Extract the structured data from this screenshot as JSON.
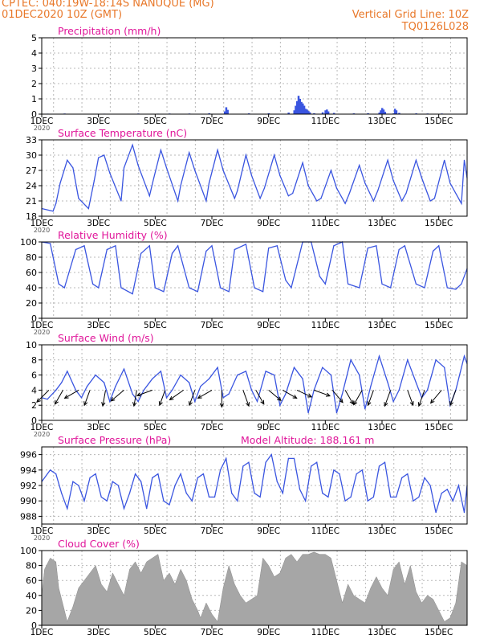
{
  "header": {
    "station": "CPTEC:   040:19W-18:14S   NANUQUE (MG)",
    "date": "01DEC2020 10Z (GMT)",
    "grid_line": "Vertical Grid Line: 10Z",
    "code": "TQ0126L028"
  },
  "x_axis": {
    "ticks": [
      "1DEC",
      "3DEC",
      "5DEC",
      "7DEC",
      "9DEC",
      "11DEC",
      "13DEC",
      "15DEC"
    ],
    "tick_days": [
      1,
      3,
      5,
      7,
      9,
      11,
      13,
      15
    ],
    "year_label": "2020",
    "range": [
      1,
      16
    ]
  },
  "colors": {
    "line": "#3a55e0",
    "title": "#e0169a",
    "header": "#e8782a",
    "grid": "#b8b8b8",
    "cloud": "#a6a6a6",
    "vector": "#000000"
  },
  "chart_data": [
    {
      "id": "precip",
      "type": "bar",
      "title": "Precipitation (mm/h)",
      "ylim": [
        0,
        5
      ],
      "yticks": [
        0,
        1,
        2,
        3,
        4,
        5
      ],
      "series": [
        {
          "x": [
            1.2,
            1.8,
            3.2,
            4.4,
            5.1,
            5.5,
            6.2,
            6.9,
            7.45,
            7.5,
            7.55,
            8.3,
            9.0,
            9.7,
            9.9,
            9.95,
            10.0,
            10.05,
            10.1,
            10.15,
            10.2,
            10.25,
            10.3,
            10.35,
            10.4,
            10.45,
            10.6,
            10.9,
            11.0,
            11.05,
            11.1,
            11.3,
            12.0,
            12.5,
            12.9,
            12.95,
            13.0,
            13.05,
            13.1,
            13.4,
            13.45,
            13.5,
            13.6,
            14.2,
            14.6,
            15.1
          ],
          "values": [
            0.03,
            0.04,
            0.03,
            0.04,
            0.03,
            0.04,
            0.04,
            0.06,
            0.18,
            0.45,
            0.28,
            0.05,
            0.06,
            0.1,
            0.25,
            0.55,
            0.85,
            1.2,
            1.0,
            0.8,
            0.7,
            0.55,
            0.35,
            0.3,
            0.2,
            0.12,
            0.06,
            0.12,
            0.25,
            0.3,
            0.18,
            0.08,
            0.05,
            0.06,
            0.1,
            0.25,
            0.4,
            0.3,
            0.15,
            0.05,
            0.35,
            0.25,
            0.08,
            0.05,
            0.04,
            0.04
          ]
        }
      ]
    },
    {
      "id": "temp",
      "type": "line",
      "title": "Surface Temperature (nC)",
      "ylim": [
        18,
        33
      ],
      "yticks": [
        18,
        21,
        24,
        27,
        30,
        33
      ],
      "series": [
        {
          "x": [
            1.0,
            1.4,
            1.5,
            1.65,
            1.9,
            2.1,
            2.3,
            2.65,
            2.85,
            3.0,
            3.2,
            3.4,
            3.8,
            3.9,
            4.2,
            4.4,
            4.8,
            4.95,
            5.2,
            5.4,
            5.8,
            5.9,
            6.2,
            6.4,
            6.8,
            6.9,
            7.2,
            7.4,
            7.8,
            7.9,
            8.2,
            8.4,
            8.7,
            8.85,
            9.2,
            9.4,
            9.7,
            9.85,
            10.2,
            10.4,
            10.7,
            10.85,
            11.2,
            11.4,
            11.7,
            11.85,
            12.2,
            12.4,
            12.7,
            12.85,
            13.2,
            13.4,
            13.7,
            13.85,
            14.2,
            14.4,
            14.7,
            14.85,
            15.2,
            15.4,
            15.8,
            15.9,
            16.0
          ],
          "values": [
            19.5,
            19.0,
            20.5,
            24.5,
            29.0,
            27.5,
            21.5,
            19.5,
            25.0,
            29.5,
            30.0,
            26.5,
            21.0,
            27.5,
            32.0,
            28.0,
            22.0,
            25.5,
            31.0,
            27.5,
            21.0,
            24.0,
            30.5,
            27.0,
            21.0,
            24.5,
            31.0,
            27.0,
            21.5,
            23.0,
            30.0,
            26.0,
            21.5,
            23.5,
            30.0,
            26.0,
            22.0,
            22.5,
            28.5,
            24.0,
            21.0,
            21.5,
            27.0,
            23.5,
            20.5,
            22.5,
            28.0,
            24.5,
            21.0,
            23.0,
            29.0,
            25.0,
            21.0,
            22.5,
            29.0,
            25.5,
            21.0,
            21.5,
            29.0,
            24.5,
            20.5,
            29.0,
            25.5
          ]
        }
      ]
    },
    {
      "id": "rh",
      "type": "line",
      "title": "Relative Humidity (%)",
      "ylim": [
        0,
        100
      ],
      "yticks": [
        0,
        20,
        40,
        60,
        80,
        100
      ],
      "series": [
        {
          "x": [
            1.0,
            1.3,
            1.6,
            1.8,
            2.2,
            2.5,
            2.8,
            3.0,
            3.3,
            3.6,
            3.8,
            4.2,
            4.5,
            4.8,
            5.0,
            5.3,
            5.6,
            5.8,
            6.2,
            6.5,
            6.8,
            7.0,
            7.3,
            7.6,
            7.8,
            8.2,
            8.5,
            8.8,
            9.0,
            9.3,
            9.6,
            9.8,
            10.2,
            10.5,
            10.8,
            11.0,
            11.3,
            11.6,
            11.8,
            12.2,
            12.5,
            12.8,
            13.0,
            13.3,
            13.6,
            13.8,
            14.2,
            14.5,
            14.8,
            15.0,
            15.3,
            15.6,
            15.8,
            16.0
          ],
          "values": [
            100,
            98,
            45,
            40,
            90,
            95,
            45,
            40,
            90,
            95,
            40,
            32,
            85,
            95,
            40,
            35,
            85,
            95,
            40,
            35,
            88,
            95,
            40,
            35,
            90,
            97,
            40,
            35,
            92,
            95,
            50,
            40,
            100,
            100,
            55,
            45,
            95,
            100,
            45,
            40,
            92,
            95,
            45,
            40,
            90,
            95,
            45,
            40,
            88,
            95,
            40,
            38,
            45,
            65
          ]
        }
      ]
    },
    {
      "id": "wind",
      "type": "line",
      "title": "Surface Wind (m/s)",
      "ylim": [
        0,
        10
      ],
      "yticks": [
        0,
        2,
        4,
        6,
        8,
        10
      ],
      "series": [
        {
          "x": [
            1.0,
            1.2,
            1.5,
            1.7,
            1.9,
            2.2,
            2.4,
            2.6,
            2.9,
            3.2,
            3.4,
            3.6,
            3.9,
            4.2,
            4.4,
            4.6,
            4.9,
            5.2,
            5.4,
            5.6,
            5.9,
            6.2,
            6.4,
            6.6,
            6.9,
            7.2,
            7.4,
            7.6,
            7.9,
            8.2,
            8.4,
            8.6,
            8.9,
            9.2,
            9.4,
            9.6,
            9.9,
            10.2,
            10.4,
            10.6,
            10.9,
            11.2,
            11.4,
            11.6,
            11.9,
            12.2,
            12.4,
            12.6,
            12.9,
            13.2,
            13.4,
            13.6,
            13.9,
            14.2,
            14.4,
            14.6,
            14.9,
            15.2,
            15.4,
            15.6,
            15.9,
            16.0
          ],
          "values": [
            3.0,
            2.8,
            4.0,
            5.0,
            6.5,
            4.0,
            3.0,
            4.5,
            6.0,
            5.0,
            2.5,
            4.5,
            6.8,
            3.5,
            2.5,
            4.0,
            5.5,
            6.5,
            3.0,
            4.0,
            6.0,
            5.0,
            2.5,
            4.5,
            5.5,
            7.0,
            3.0,
            3.5,
            6.0,
            6.5,
            4.0,
            2.5,
            6.5,
            6.0,
            2.0,
            3.5,
            7.0,
            5.5,
            1.0,
            4.0,
            7.0,
            6.0,
            1.0,
            3.5,
            8.0,
            6.0,
            1.5,
            4.5,
            8.5,
            5.0,
            2.5,
            4.0,
            8.0,
            5.0,
            3.0,
            4.0,
            8.0,
            7.0,
            2.0,
            4.0,
            8.5,
            7.5
          ]
        }
      ],
      "vectors": [
        {
          "x": 1.25,
          "speed": 3.5,
          "dir_deg": 225
        },
        {
          "x": 1.75,
          "speed": 3.0,
          "dir_deg": 210
        },
        {
          "x": 2.3,
          "speed": 3.0,
          "dir_deg": 240
        },
        {
          "x": 2.7,
          "speed": 3.0,
          "dir_deg": 200
        },
        {
          "x": 3.25,
          "speed": 3.0,
          "dir_deg": 190
        },
        {
          "x": 3.9,
          "speed": 3.5,
          "dir_deg": 230
        },
        {
          "x": 4.35,
          "speed": 3.0,
          "dir_deg": 190
        },
        {
          "x": 4.9,
          "speed": 3.0,
          "dir_deg": 250
        },
        {
          "x": 5.35,
          "speed": 3.0,
          "dir_deg": 200
        },
        {
          "x": 6.0,
          "speed": 3.5,
          "dir_deg": 235
        },
        {
          "x": 6.4,
          "speed": 3.0,
          "dir_deg": 200
        },
        {
          "x": 7.0,
          "speed": 3.0,
          "dir_deg": 240
        },
        {
          "x": 7.35,
          "speed": 3.5,
          "dir_deg": 180
        },
        {
          "x": 8.1,
          "speed": 3.5,
          "dir_deg": 160
        },
        {
          "x": 8.55,
          "speed": 3.0,
          "dir_deg": 150
        },
        {
          "x": 9.0,
          "speed": 3.0,
          "dir_deg": 130
        },
        {
          "x": 9.5,
          "speed": 3.0,
          "dir_deg": 120
        },
        {
          "x": 10.0,
          "speed": 3.0,
          "dir_deg": 115
        },
        {
          "x": 10.6,
          "speed": 3.5,
          "dir_deg": 110
        },
        {
          "x": 11.25,
          "speed": 3.0,
          "dir_deg": 140
        },
        {
          "x": 11.7,
          "speed": 3.0,
          "dir_deg": 150
        },
        {
          "x": 12.3,
          "speed": 3.5,
          "dir_deg": 210
        },
        {
          "x": 12.7,
          "speed": 3.0,
          "dir_deg": 200
        },
        {
          "x": 13.3,
          "speed": 3.5,
          "dir_deg": 200
        },
        {
          "x": 13.9,
          "speed": 3.0,
          "dir_deg": 160
        },
        {
          "x": 14.5,
          "speed": 3.5,
          "dir_deg": 200
        },
        {
          "x": 15.1,
          "speed": 3.5,
          "dir_deg": 220
        },
        {
          "x": 15.6,
          "speed": 3.0,
          "dir_deg": 200
        }
      ]
    },
    {
      "id": "pres",
      "type": "line",
      "title": "Surface Pressure (hPa)",
      "annotation": "Model Altitude: 188.161  m",
      "ylim": [
        987,
        997
      ],
      "yticks": [
        988,
        990,
        992,
        994,
        996
      ],
      "series": [
        {
          "x": [
            1.0,
            1.3,
            1.5,
            1.7,
            1.9,
            2.1,
            2.3,
            2.5,
            2.7,
            2.9,
            3.1,
            3.3,
            3.5,
            3.7,
            3.9,
            4.1,
            4.3,
            4.5,
            4.7,
            4.9,
            5.1,
            5.3,
            5.5,
            5.7,
            5.9,
            6.1,
            6.3,
            6.5,
            6.7,
            6.9,
            7.1,
            7.3,
            7.5,
            7.7,
            7.9,
            8.1,
            8.3,
            8.5,
            8.7,
            8.9,
            9.1,
            9.3,
            9.5,
            9.7,
            9.9,
            10.1,
            10.3,
            10.5,
            10.7,
            10.9,
            11.1,
            11.3,
            11.5,
            11.7,
            11.9,
            12.1,
            12.3,
            12.5,
            12.7,
            12.9,
            13.1,
            13.3,
            13.5,
            13.7,
            13.9,
            14.1,
            14.3,
            14.5,
            14.7,
            14.9,
            15.1,
            15.3,
            15.5,
            15.7,
            15.9,
            16.0
          ],
          "values": [
            992.5,
            994.0,
            993.5,
            991.0,
            989.0,
            992.5,
            992.0,
            990.0,
            993.0,
            993.5,
            990.5,
            990.0,
            992.5,
            992.0,
            989.0,
            991.0,
            993.5,
            992.5,
            989.0,
            993.0,
            993.5,
            990.0,
            989.5,
            992.0,
            993.5,
            991.0,
            990.0,
            993.0,
            993.5,
            990.5,
            990.5,
            994.0,
            995.5,
            991.0,
            990.0,
            994.5,
            995.0,
            991.0,
            990.5,
            995.0,
            996.0,
            992.5,
            991.0,
            995.5,
            995.5,
            991.5,
            990.0,
            994.5,
            995.0,
            991.0,
            990.5,
            994.0,
            993.5,
            990.0,
            990.5,
            993.5,
            994.0,
            990.0,
            990.5,
            994.5,
            995.0,
            990.5,
            990.5,
            993.0,
            993.5,
            990.0,
            990.5,
            993.0,
            992.0,
            988.5,
            991.0,
            991.5,
            990.0,
            992.0,
            988.5,
            992.0
          ]
        }
      ]
    },
    {
      "id": "cloud",
      "type": "area",
      "title": "Cloud Cover (%)",
      "ylim": [
        0,
        100
      ],
      "yticks": [
        0,
        20,
        40,
        60,
        80,
        100
      ],
      "series": [
        {
          "x": [
            1.0,
            1.1,
            1.3,
            1.5,
            1.6,
            1.8,
            1.9,
            2.1,
            2.3,
            2.5,
            2.7,
            2.9,
            3.1,
            3.3,
            3.5,
            3.7,
            3.9,
            4.1,
            4.3,
            4.5,
            4.7,
            4.9,
            5.1,
            5.3,
            5.5,
            5.7,
            5.9,
            6.1,
            6.3,
            6.5,
            6.6,
            6.8,
            7.0,
            7.2,
            7.4,
            7.6,
            7.8,
            8.0,
            8.2,
            8.4,
            8.6,
            8.8,
            9.0,
            9.2,
            9.4,
            9.6,
            9.8,
            10.0,
            10.2,
            10.4,
            10.6,
            10.8,
            11.0,
            11.2,
            11.4,
            11.6,
            11.8,
            12.0,
            12.2,
            12.4,
            12.6,
            12.8,
            13.0,
            13.2,
            13.4,
            13.6,
            13.8,
            14.0,
            14.2,
            14.4,
            14.6,
            14.8,
            15.0,
            15.2,
            15.4,
            15.6,
            15.8,
            16.0
          ],
          "values": [
            40,
            75,
            90,
            85,
            50,
            20,
            5,
            25,
            50,
            60,
            70,
            80,
            55,
            45,
            70,
            55,
            40,
            75,
            85,
            70,
            85,
            90,
            95,
            60,
            70,
            55,
            75,
            60,
            35,
            20,
            10,
            30,
            15,
            5,
            50,
            80,
            55,
            40,
            30,
            35,
            40,
            90,
            80,
            65,
            70,
            90,
            95,
            85,
            95,
            95,
            98,
            95,
            95,
            90,
            60,
            30,
            55,
            40,
            35,
            30,
            50,
            65,
            50,
            40,
            75,
            85,
            55,
            80,
            45,
            30,
            40,
            35,
            20,
            5,
            10,
            30,
            85,
            80
          ]
        }
      ]
    }
  ]
}
